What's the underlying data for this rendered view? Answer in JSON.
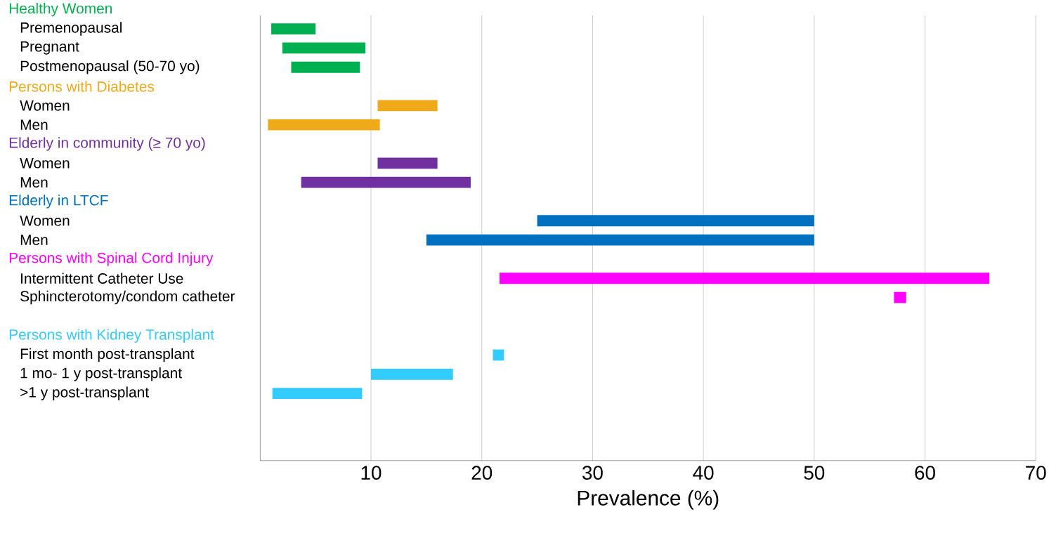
{
  "chart_data": {
    "type": "bar",
    "orientation": "horizontal",
    "xlabel": "Prevalence (%)",
    "categories": [
      null,
      "Premenopausal",
      "Pregnant",
      "Postmenopausal (50-70 yo)",
      null,
      "Women",
      "Men",
      null,
      "Women",
      "Men",
      null,
      "Women",
      "Men",
      null,
      "Intermittent Catheter Use",
      "Sphincterotomy/condom catheter",
      null,
      null,
      "First month post-transplant",
      "1 mo- 1 y post-transplant",
      ">1 y post-transplant"
    ],
    "series": [
      {
        "name": "Healthy Women",
        "color": "#00b050",
        "base": [
          null,
          1,
          2,
          2.8,
          null,
          null,
          null,
          null,
          null,
          null,
          null,
          null,
          null,
          null,
          null,
          null,
          null,
          null,
          null,
          null,
          null
        ],
        "values": [
          null,
          4,
          7.5,
          6.2,
          null,
          null,
          null,
          null,
          null,
          null,
          null,
          null,
          null,
          null,
          null,
          null,
          null,
          null,
          null,
          null,
          null
        ]
      },
      {
        "name": "Persons with Diabetes",
        "color": "#f0aa19",
        "base": [
          null,
          null,
          null,
          null,
          null,
          10.6,
          0.7,
          null,
          null,
          null,
          null,
          null,
          null,
          null,
          null,
          null,
          null,
          null,
          null,
          null,
          null
        ],
        "values": [
          null,
          null,
          null,
          null,
          null,
          5.4,
          10.1,
          null,
          null,
          null,
          null,
          null,
          null,
          null,
          null,
          null,
          null,
          null,
          null,
          null,
          null
        ]
      },
      {
        "name": "Elderly in community (≥ 70 yo)",
        "color": "#7030a0",
        "base": [
          null,
          null,
          null,
          null,
          null,
          null,
          null,
          null,
          10.6,
          3.7,
          null,
          null,
          null,
          null,
          null,
          null,
          null,
          null,
          null,
          null,
          null
        ],
        "values": [
          null,
          null,
          null,
          null,
          null,
          null,
          null,
          null,
          5.4,
          15.3,
          null,
          null,
          null,
          null,
          null,
          null,
          null,
          null,
          null,
          null,
          null
        ]
      },
      {
        "name": "Elderly in LTCF",
        "color": "#0070c0",
        "base": [
          null,
          null,
          null,
          null,
          null,
          null,
          null,
          null,
          null,
          null,
          null,
          25,
          15,
          null,
          null,
          null,
          null,
          null,
          null,
          null,
          null
        ],
        "values": [
          null,
          null,
          null,
          null,
          null,
          null,
          null,
          null,
          null,
          null,
          null,
          25,
          35,
          null,
          null,
          null,
          null,
          null,
          null,
          null,
          null
        ]
      },
      {
        "name": "Persons with Spinal Cord Injury",
        "color": "#ff00ff",
        "base": [
          null,
          null,
          null,
          null,
          null,
          null,
          null,
          null,
          null,
          null,
          null,
          null,
          null,
          null,
          21.6,
          57.2,
          null,
          null,
          null,
          null,
          null
        ],
        "values": [
          null,
          null,
          null,
          null,
          null,
          null,
          null,
          null,
          null,
          null,
          null,
          null,
          null,
          null,
          44.2,
          1.1,
          null,
          null,
          null,
          null,
          null
        ]
      },
      {
        "name": "Persons with Kidney Transplant",
        "color": "#33ccff",
        "base": [
          null,
          null,
          null,
          null,
          null,
          null,
          null,
          null,
          null,
          null,
          null,
          null,
          null,
          null,
          null,
          null,
          null,
          null,
          21,
          10,
          1.1
        ],
        "values": [
          null,
          null,
          null,
          null,
          null,
          null,
          null,
          null,
          null,
          null,
          null,
          null,
          null,
          null,
          null,
          null,
          null,
          null,
          1,
          7.4,
          8.1
        ]
      }
    ],
    "xlim": [
      0,
      70
    ],
    "xticks": [
      10,
      20,
      30,
      40,
      50,
      60,
      70
    ],
    "grid": "x"
  }
}
